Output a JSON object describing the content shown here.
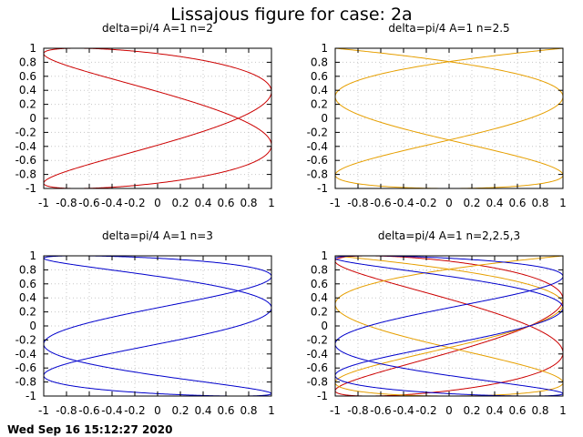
{
  "figure": {
    "title": "Lissajous figure for case: 2a",
    "timestamp": "Wed Sep 16 15:12:27 2020"
  },
  "colors": {
    "n2": "#cc0000",
    "n2_5": "#e69f00",
    "n3": "#0000cc"
  },
  "chart_data": [
    {
      "type": "line",
      "title": "delta=pi/4 A=1 n=2",
      "xlim": [
        -1,
        1
      ],
      "ylim": [
        -1,
        1
      ],
      "xticks": [
        "-1",
        "-0.8",
        "-0.6",
        "-0.4",
        "-0.2",
        "0",
        "0.2",
        "0.4",
        "0.6",
        "0.8",
        "1"
      ],
      "yticks": [
        "1",
        "0.8",
        "0.6",
        "0.4",
        "0.2",
        "0",
        "-0.2",
        "-0.4",
        "-0.6",
        "-0.8",
        "-1"
      ],
      "grid": true,
      "series": [
        {
          "parametric": {
            "x": "sin(n*t + pi/4)",
            "y": "sin(t)",
            "t_range": [
              0,
              6.2832
            ]
          },
          "n": 2,
          "color": "#cc0000"
        }
      ]
    },
    {
      "type": "line",
      "title": "delta=pi/4 A=1 n=2.5",
      "xlim": [
        -1,
        1
      ],
      "ylim": [
        -1,
        1
      ],
      "xticks": [
        "-1",
        "-0.8",
        "-0.6",
        "-0.4",
        "-0.2",
        "0",
        "0.2",
        "0.4",
        "0.6",
        "0.8",
        "1"
      ],
      "yticks": [
        "1",
        "0.8",
        "0.6",
        "0.4",
        "0.2",
        "0",
        "-0.2",
        "-0.4",
        "-0.6",
        "-0.8",
        "-1"
      ],
      "grid": true,
      "series": [
        {
          "parametric": {
            "x": "sin(n*t + pi/4)",
            "y": "sin(t)",
            "t_range": [
              0,
              12.5664
            ]
          },
          "n": 2.5,
          "color": "#e69f00"
        }
      ]
    },
    {
      "type": "line",
      "title": "delta=pi/4 A=1 n=3",
      "xlim": [
        -1,
        1
      ],
      "ylim": [
        -1,
        1
      ],
      "xticks": [
        "-1",
        "-0.8",
        "-0.6",
        "-0.4",
        "-0.2",
        "0",
        "0.2",
        "0.4",
        "0.6",
        "0.8",
        "1"
      ],
      "yticks": [
        "1",
        "0.8",
        "0.6",
        "0.4",
        "0.2",
        "0",
        "-0.2",
        "-0.4",
        "-0.6",
        "-0.8",
        "-1"
      ],
      "grid": true,
      "series": [
        {
          "parametric": {
            "x": "sin(n*t + pi/4)",
            "y": "sin(t)",
            "t_range": [
              0,
              6.2832
            ]
          },
          "n": 3,
          "color": "#0000cc"
        }
      ]
    },
    {
      "type": "line",
      "title": "delta=pi/4 A=1 n=2,2.5,3",
      "xlim": [
        -1,
        1
      ],
      "ylim": [
        -1,
        1
      ],
      "xticks": [
        "-1",
        "-0.8",
        "-0.6",
        "-0.4",
        "-0.2",
        "0",
        "0.2",
        "0.4",
        "0.6",
        "0.8",
        "1"
      ],
      "yticks": [
        "1",
        "0.8",
        "0.6",
        "0.4",
        "0.2",
        "0",
        "-0.2",
        "-0.4",
        "-0.6",
        "-0.8",
        "-1"
      ],
      "grid": true,
      "series": [
        {
          "parametric": {
            "x": "sin(n*t + pi/4)",
            "y": "sin(t)",
            "t_range": [
              0,
              6.2832
            ]
          },
          "n": 2,
          "color": "#cc0000"
        },
        {
          "parametric": {
            "x": "sin(n*t + pi/4)",
            "y": "sin(t)",
            "t_range": [
              0,
              12.5664
            ]
          },
          "n": 2.5,
          "color": "#e69f00"
        },
        {
          "parametric": {
            "x": "sin(n*t + pi/4)",
            "y": "sin(t)",
            "t_range": [
              0,
              6.2832
            ]
          },
          "n": 3,
          "color": "#0000cc"
        }
      ]
    }
  ]
}
